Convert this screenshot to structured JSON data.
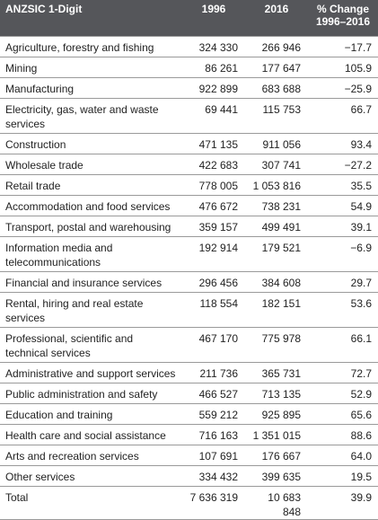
{
  "table": {
    "headers": {
      "industry": "ANZSIC 1-Digit",
      "year1": "1996",
      "year2": "2016",
      "change": "% Change 1996–2016"
    },
    "rows": [
      {
        "name": "Agriculture, forestry and fishing",
        "v1996": "324 330",
        "v2016": "266 946",
        "pct": "−17.7",
        "lines": 1
      },
      {
        "name": "Mining",
        "v1996": "86 261",
        "v2016": "177 647",
        "pct": "105.9",
        "lines": 1
      },
      {
        "name": "Manufacturing",
        "v1996": "922 899",
        "v2016": "683 688",
        "pct": "−25.9",
        "lines": 1
      },
      {
        "name": "Electricity, gas, water and waste services",
        "v1996": "69 441",
        "v2016": "115 753",
        "pct": "66.7",
        "lines": 2
      },
      {
        "name": "Construction",
        "v1996": "471 135",
        "v2016": "911 056",
        "pct": "93.4",
        "lines": 1
      },
      {
        "name": "Wholesale trade",
        "v1996": "422 683",
        "v2016": "307 741",
        "pct": "−27.2",
        "lines": 1
      },
      {
        "name": "Retail trade",
        "v1996": "778 005",
        "v2016": "1 053 816",
        "pct": "35.5",
        "lines": 1
      },
      {
        "name": "Accommodation and food services",
        "v1996": "476 672",
        "v2016": "738 231",
        "pct": "54.9",
        "lines": 1
      },
      {
        "name": "Transport, postal and warehousing",
        "v1996": "359 157",
        "v2016": "499 491",
        "pct": "39.1",
        "lines": 1
      },
      {
        "name": "Information media and telecommunications",
        "v1996": "192 914",
        "v2016": "179 521",
        "pct": "−6.9",
        "lines": 2
      },
      {
        "name": "Financial and insurance services",
        "v1996": "296 456",
        "v2016": "384 608",
        "pct": "29.7",
        "lines": 1
      },
      {
        "name": "Rental, hiring and real estate services",
        "v1996": "118 554",
        "v2016": "182 151",
        "pct": "53.6",
        "lines": 2
      },
      {
        "name": "Professional, scientific and technical services",
        "v1996": "467 170",
        "v2016": "775 978",
        "pct": "66.1",
        "lines": 2
      },
      {
        "name": "Administrative and support services",
        "v1996": "211 736",
        "v2016": "365 731",
        "pct": "72.7",
        "lines": 1
      },
      {
        "name": "Public administration and safety",
        "v1996": "466 527",
        "v2016": "713 135",
        "pct": "52.9",
        "lines": 1
      },
      {
        "name": "Education and training",
        "v1996": "559 212",
        "v2016": "925 895",
        "pct": "65.6",
        "lines": 1
      },
      {
        "name": "Health care and social assistance",
        "v1996": "716 163",
        "v2016": "1 351 015",
        "pct": "88.6",
        "lines": 1
      },
      {
        "name": "Arts and recreation services",
        "v1996": "107 691",
        "v2016": "176 667",
        "pct": "64.0",
        "lines": 1
      },
      {
        "name": "Other services",
        "v1996": "334 432",
        "v2016": "399 635",
        "pct": "19.5",
        "lines": 1
      },
      {
        "name": "Total",
        "v1996": "7 636 319",
        "v2016": "10 683 848",
        "pct": "39.9",
        "lines": 1
      }
    ]
  }
}
